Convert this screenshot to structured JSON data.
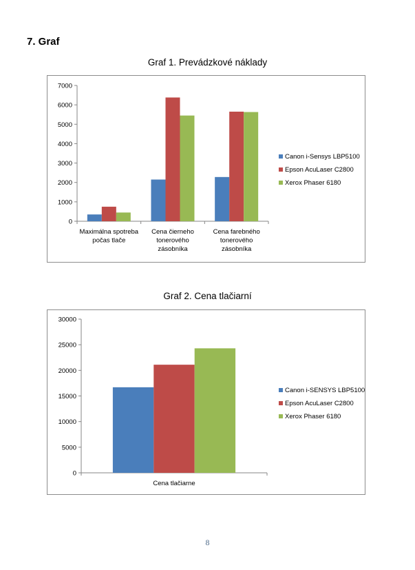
{
  "section_heading": "7. Graf",
  "page_number": "8",
  "colors": {
    "canon": "#4a7ebb",
    "epson": "#be4b48",
    "xerox": "#98b954",
    "axis": "#868686",
    "border": "#8c8c8c"
  },
  "chart_data": [
    {
      "type": "bar",
      "caption": "Graf 1. Prevádzkové náklady",
      "categories": [
        [
          "Maximálna spotreba",
          "počas tlače"
        ],
        [
          "Cena čierneho",
          "tonerového",
          "zásobníka"
        ],
        [
          "Cena farebného",
          "tonerového",
          "zásobníka"
        ]
      ],
      "ylim": [
        0,
        7000
      ],
      "yticks": [
        0,
        1000,
        2000,
        3000,
        4000,
        5000,
        6000,
        7000
      ],
      "grid": false,
      "legend_position": "right",
      "series": [
        {
          "name": "Canon i-Sensys LBP5100",
          "color": "#4a7ebb",
          "values": [
            350,
            2150,
            2280
          ]
        },
        {
          "name": "Epson AcuLaser C2800",
          "color": "#be4b48",
          "values": [
            750,
            6380,
            5650
          ]
        },
        {
          "name": "Xerox Phaser 6180",
          "color": "#98b954",
          "values": [
            450,
            5450,
            5630
          ]
        }
      ]
    },
    {
      "type": "bar",
      "caption": "Graf 2. Cena tlačiarní",
      "categories": [
        [
          "Cena tlačiarne"
        ]
      ],
      "ylim": [
        0,
        30000
      ],
      "yticks": [
        0,
        5000,
        10000,
        15000,
        20000,
        25000,
        30000
      ],
      "grid": false,
      "legend_position": "right",
      "series": [
        {
          "name": "Canon i-SENSYS LBP5100",
          "color": "#4a7ebb",
          "values": [
            16700
          ]
        },
        {
          "name": "Epson AcuLaser C2800",
          "color": "#be4b48",
          "values": [
            21100
          ]
        },
        {
          "name": "Xerox Phaser 6180",
          "color": "#98b954",
          "values": [
            24300
          ]
        }
      ]
    }
  ]
}
